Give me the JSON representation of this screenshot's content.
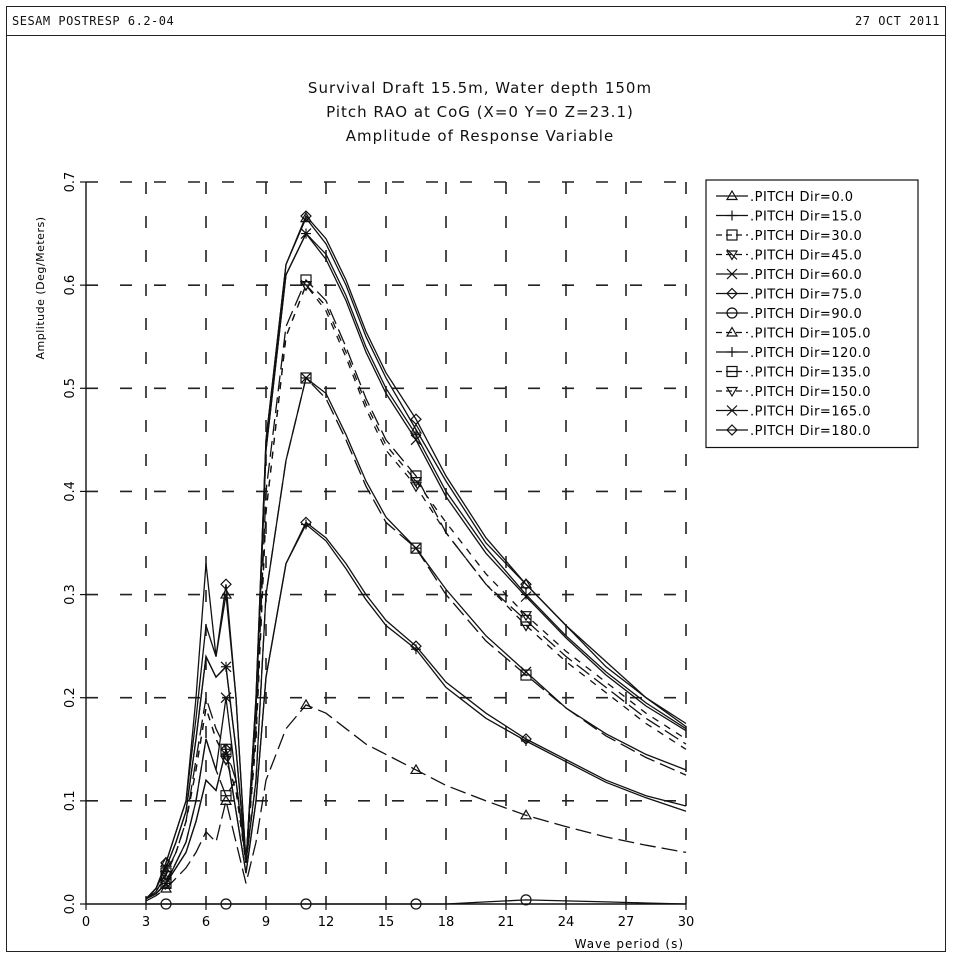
{
  "header": {
    "program": "SESAM POSTRESP 6.2-04",
    "date": "27 OCT 2011"
  },
  "chart_data": {
    "type": "line",
    "title": "Survival Draft 15.5m, Water depth 150m",
    "subtitle_1": "Pitch RAO at CoG (X=0 Y=0 Z=23.1)",
    "subtitle_2": "Amplitude of Response Variable",
    "xlabel": "Wave period (s)",
    "ylabel": "Amplitude (Deg/Meters)",
    "xlim": [
      0,
      30
    ],
    "ylim": [
      0,
      0.7
    ],
    "xticks": [
      "0",
      "3",
      "6",
      "9",
      "12",
      "15",
      "18",
      "21",
      "24",
      "27",
      "30"
    ],
    "yticks": [
      "0.0",
      "0.1",
      "0.2",
      "0.3",
      "0.4",
      "0.5",
      "0.6",
      "0.7"
    ],
    "grid": true,
    "legend_position": "top-right",
    "series": [
      {
        "name": ".PITCH   Dir=0.0",
        "marker": "triangle",
        "dash": "solid",
        "x": [
          3,
          3.5,
          4,
          4.5,
          5,
          5.5,
          6,
          6.5,
          7,
          7.5,
          8,
          8.5,
          9,
          10,
          11,
          12,
          13,
          14,
          15,
          16.5,
          18,
          20,
          22,
          24,
          26,
          28,
          30
        ],
        "y": [
          0.005,
          0.015,
          0.04,
          0.07,
          0.1,
          0.18,
          0.27,
          0.24,
          0.3,
          0.2,
          0.04,
          0.2,
          0.45,
          0.62,
          0.665,
          0.64,
          0.6,
          0.55,
          0.51,
          0.46,
          0.41,
          0.35,
          0.31,
          0.27,
          0.23,
          0.2,
          0.175
        ]
      },
      {
        "name": ".PITCH   Dir=15.0",
        "marker": "plus",
        "dash": "solid",
        "x": [
          3,
          3.5,
          4,
          4.5,
          5,
          5.5,
          6,
          6.5,
          7,
          7.5,
          8,
          8.5,
          9,
          10,
          11,
          12,
          13,
          14,
          15,
          16.5,
          18,
          20,
          22,
          24,
          26,
          28,
          30
        ],
        "y": [
          0.005,
          0.015,
          0.035,
          0.06,
          0.09,
          0.16,
          0.24,
          0.22,
          0.23,
          0.15,
          0.04,
          0.19,
          0.44,
          0.61,
          0.65,
          0.63,
          0.59,
          0.54,
          0.5,
          0.455,
          0.4,
          0.345,
          0.3,
          0.26,
          0.225,
          0.195,
          0.17
        ]
      },
      {
        "name": ".PITCH   Dir=30.0",
        "marker": "square",
        "dash": "long-dash",
        "x": [
          3,
          3.5,
          4,
          4.5,
          5,
          5.5,
          6,
          6.5,
          7,
          7.5,
          8,
          8.5,
          9,
          10,
          11,
          12,
          13,
          14,
          15,
          16.5,
          18,
          20,
          22,
          24,
          26,
          28,
          30
        ],
        "y": [
          0.005,
          0.012,
          0.03,
          0.05,
          0.08,
          0.14,
          0.2,
          0.17,
          0.15,
          0.12,
          0.04,
          0.17,
          0.4,
          0.56,
          0.605,
          0.585,
          0.54,
          0.49,
          0.45,
          0.415,
          0.36,
          0.31,
          0.275,
          0.24,
          0.21,
          0.18,
          0.155
        ]
      },
      {
        "name": ".PITCH   Dir=45.0",
        "marker": "down-triangle-slash",
        "dash": "short-dash",
        "x": [
          3,
          3.5,
          4,
          4.5,
          5,
          5.5,
          6,
          6.5,
          7,
          7.5,
          8,
          8.5,
          9,
          10,
          11,
          12,
          13,
          14,
          15,
          16.5,
          18,
          20,
          22,
          24,
          26,
          28,
          30
        ],
        "y": [
          0.005,
          0.012,
          0.028,
          0.05,
          0.08,
          0.13,
          0.19,
          0.16,
          0.14,
          0.11,
          0.04,
          0.16,
          0.38,
          0.55,
          0.6,
          0.58,
          0.535,
          0.485,
          0.445,
          0.41,
          0.37,
          0.32,
          0.28,
          0.245,
          0.215,
          0.185,
          0.16
        ]
      },
      {
        "name": ".PITCH   Dir=60.0",
        "marker": "x",
        "dash": "solid",
        "x": [
          3,
          3.5,
          4,
          4.5,
          5,
          5.5,
          6,
          6.5,
          7,
          7.5,
          8,
          8.5,
          9,
          10,
          11,
          12,
          13,
          14,
          15,
          16.5,
          18,
          20,
          22,
          24,
          26,
          28,
          30
        ],
        "y": [
          0.005,
          0.01,
          0.02,
          0.04,
          0.06,
          0.1,
          0.16,
          0.13,
          0.2,
          0.12,
          0.04,
          0.12,
          0.3,
          0.43,
          0.51,
          0.495,
          0.455,
          0.41,
          0.375,
          0.345,
          0.305,
          0.26,
          0.225,
          0.19,
          0.165,
          0.145,
          0.13
        ]
      },
      {
        "name": ".PITCH   Dir=75.0",
        "marker": "diamond",
        "dash": "solid",
        "x": [
          3,
          3.5,
          4,
          4.5,
          5,
          5.5,
          6,
          6.5,
          7,
          7.5,
          8,
          8.5,
          9,
          10,
          11,
          12,
          13,
          14,
          15,
          16.5,
          18,
          20,
          22,
          24,
          26,
          28,
          30
        ],
        "y": [
          0.005,
          0.01,
          0.02,
          0.035,
          0.05,
          0.08,
          0.12,
          0.11,
          0.15,
          0.09,
          0.03,
          0.1,
          0.22,
          0.33,
          0.37,
          0.355,
          0.33,
          0.3,
          0.275,
          0.25,
          0.215,
          0.185,
          0.16,
          0.14,
          0.12,
          0.105,
          0.095
        ]
      },
      {
        "name": ".PITCH   Dir=90.0",
        "marker": "circle",
        "dash": "solid",
        "x": [
          3,
          5,
          7,
          9,
          11,
          13,
          15,
          16.5,
          18,
          20,
          22,
          24,
          26,
          28,
          30
        ],
        "y": [
          0.0,
          0.0,
          0.0,
          0.0,
          0.0,
          0.0,
          0.0,
          0.0,
          0.0,
          0.002,
          0.004,
          0.003,
          0.002,
          0.001,
          0.0
        ]
      },
      {
        "name": ".PITCH   Dir=105.0",
        "marker": "triangle",
        "dash": "long-dash",
        "x": [
          3,
          3.5,
          4,
          4.5,
          5,
          5.5,
          6,
          6.5,
          7,
          7.5,
          8,
          8.5,
          9,
          10,
          11,
          12,
          13,
          14,
          15,
          16.5,
          18,
          20,
          22,
          24,
          26,
          28,
          30
        ],
        "y": [
          0.003,
          0.008,
          0.015,
          0.025,
          0.035,
          0.05,
          0.07,
          0.06,
          0.1,
          0.06,
          0.02,
          0.06,
          0.12,
          0.17,
          0.193,
          0.185,
          0.17,
          0.155,
          0.145,
          0.13,
          0.115,
          0.1,
          0.086,
          0.075,
          0.065,
          0.057,
          0.05
        ]
      },
      {
        "name": ".PITCH   Dir=120.0",
        "marker": "plus",
        "dash": "solid",
        "x": [
          3,
          3.5,
          4,
          4.5,
          5,
          5.5,
          6,
          6.5,
          7,
          7.5,
          8,
          8.5,
          9,
          10,
          11,
          12,
          13,
          14,
          15,
          16.5,
          18,
          20,
          22,
          24,
          26,
          28,
          30
        ],
        "y": [
          0.005,
          0.01,
          0.02,
          0.035,
          0.05,
          0.08,
          0.12,
          0.11,
          0.15,
          0.09,
          0.03,
          0.1,
          0.22,
          0.33,
          0.368,
          0.352,
          0.325,
          0.295,
          0.27,
          0.247,
          0.21,
          0.18,
          0.158,
          0.138,
          0.118,
          0.103,
          0.09
        ]
      },
      {
        "name": ".PITCH   Dir=135.0",
        "marker": "square-cross",
        "dash": "long-dash",
        "x": [
          3,
          3.5,
          4,
          4.5,
          5,
          5.5,
          6,
          6.5,
          7,
          7.5,
          8,
          8.5,
          9,
          10,
          11,
          12,
          13,
          14,
          15,
          16.5,
          18,
          20,
          22,
          24,
          26,
          28,
          30
        ],
        "y": [
          0.005,
          0.01,
          0.02,
          0.04,
          0.06,
          0.1,
          0.16,
          0.13,
          0.105,
          0.12,
          0.04,
          0.12,
          0.3,
          0.43,
          0.51,
          0.49,
          0.45,
          0.405,
          0.37,
          0.345,
          0.3,
          0.255,
          0.222,
          0.19,
          0.163,
          0.142,
          0.125
        ]
      },
      {
        "name": ".PITCH   Dir=150.0",
        "marker": "down-triangle",
        "dash": "short-dash",
        "x": [
          3,
          3.5,
          4,
          4.5,
          5,
          5.5,
          6,
          6.5,
          7,
          7.5,
          8,
          8.5,
          9,
          10,
          11,
          12,
          13,
          14,
          15,
          16.5,
          18,
          20,
          22,
          24,
          26,
          28,
          30
        ],
        "y": [
          0.005,
          0.012,
          0.028,
          0.05,
          0.08,
          0.13,
          0.19,
          0.16,
          0.14,
          0.11,
          0.04,
          0.16,
          0.38,
          0.55,
          0.6,
          0.575,
          0.53,
          0.48,
          0.44,
          0.405,
          0.36,
          0.31,
          0.27,
          0.235,
          0.205,
          0.175,
          0.15
        ]
      },
      {
        "name": ".PITCH   Dir=165.0",
        "marker": "x",
        "dash": "solid",
        "x": [
          3,
          3.5,
          4,
          4.5,
          5,
          5.5,
          6,
          6.5,
          7,
          7.5,
          8,
          8.5,
          9,
          10,
          11,
          12,
          13,
          14,
          15,
          16.5,
          18,
          20,
          22,
          24,
          26,
          28,
          30
        ],
        "y": [
          0.005,
          0.015,
          0.035,
          0.06,
          0.09,
          0.16,
          0.24,
          0.22,
          0.23,
          0.15,
          0.04,
          0.19,
          0.44,
          0.61,
          0.65,
          0.625,
          0.585,
          0.535,
          0.495,
          0.45,
          0.395,
          0.34,
          0.298,
          0.258,
          0.222,
          0.192,
          0.168
        ]
      },
      {
        "name": ".PITCH   Dir=180.0",
        "marker": "diamond",
        "dash": "solid",
        "x": [
          3,
          3.5,
          4,
          4.5,
          5,
          5.5,
          6,
          6.5,
          7,
          7.5,
          8,
          8.5,
          9,
          10,
          11,
          12,
          13,
          14,
          15,
          16.5,
          18,
          20,
          22,
          24,
          26,
          28,
          30
        ],
        "y": [
          0.005,
          0.015,
          0.04,
          0.07,
          0.1,
          0.2,
          0.33,
          0.24,
          0.31,
          0.2,
          0.04,
          0.2,
          0.45,
          0.62,
          0.667,
          0.645,
          0.605,
          0.555,
          0.515,
          0.47,
          0.415,
          0.355,
          0.31,
          0.27,
          0.235,
          0.2,
          0.172
        ]
      }
    ],
    "marker_x": [
      4,
      7,
      11,
      16.5,
      22
    ]
  }
}
